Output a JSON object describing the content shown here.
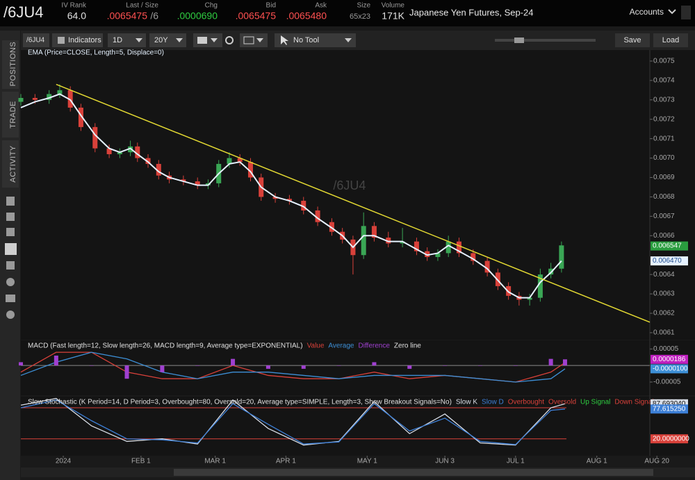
{
  "header": {
    "symbol": "/6JU4",
    "fields": [
      {
        "label": "IV Rank",
        "value": "64.0",
        "color": "#e0e0e0"
      },
      {
        "label": "Last / Size",
        "value": ".0065475",
        "extra": "/6",
        "color": "#ff5050"
      },
      {
        "label": "Chg",
        "value": ".0000690",
        "color": "#2ecc40"
      },
      {
        "label": "Bid",
        "value": ".0065475",
        "color": "#ff5050"
      },
      {
        "label": "Ask",
        "value": ".0065480",
        "color": "#ff5050"
      },
      {
        "label": "Size",
        "value": "65x23",
        "color": "#9a9a9a"
      },
      {
        "label": "Volume",
        "value": "171K",
        "color": "#e0e0e0"
      }
    ],
    "description": "Japanese Yen Futures, Sep-24",
    "accounts": "Accounts"
  },
  "sidebar": {
    "tabs": [
      "POSITIONS",
      "TRADE",
      "ACTIVITY"
    ]
  },
  "toolbar": {
    "symbol": "/6JU4",
    "indicators": "Indicators",
    "interval": "1D",
    "range": "20Y",
    "tool": "No Tool",
    "save": "Save",
    "load": "Load"
  },
  "chart_data": [
    {
      "type": "candlestick",
      "title": "EMA (Price=CLOSE, Length=5, Displace=0)",
      "watermark": "/6JU4",
      "x": [
        0,
        4,
        8,
        11,
        14,
        17,
        21,
        25,
        28,
        31,
        33,
        36,
        39,
        42,
        46,
        50,
        53,
        56,
        59,
        62,
        65,
        68,
        72,
        76,
        80,
        84,
        88,
        91,
        94,
        97,
        100,
        104,
        108,
        112,
        115,
        118,
        121,
        124,
        128,
        132,
        135,
        138,
        141,
        144,
        147,
        150,
        153
      ],
      "open": [
        0.00729,
        0.00731,
        0.0073,
        0.00733,
        0.00735,
        0.00726,
        0.00716,
        0.00705,
        0.00702,
        0.00703,
        0.00706,
        0.007,
        0.00697,
        0.00691,
        0.00689,
        0.00688,
        0.00686,
        0.00687,
        0.00697,
        0.007,
        0.00698,
        0.0069,
        0.0068,
        0.00679,
        0.00678,
        0.00673,
        0.00667,
        0.00662,
        0.00658,
        0.0065,
        0.00665,
        0.00659,
        0.00656,
        0.00657,
        0.00652,
        0.00649,
        0.00651,
        0.00657,
        0.00651,
        0.00647,
        0.00641,
        0.00634,
        0.00629,
        0.00627,
        0.00628,
        0.0064,
        0.00643
      ],
      "high": [
        0.00733,
        0.00733,
        0.00735,
        0.00738,
        0.00737,
        0.00728,
        0.00718,
        0.00707,
        0.00705,
        0.00709,
        0.00708,
        0.00702,
        0.00699,
        0.00693,
        0.00691,
        0.0069,
        0.00689,
        0.00699,
        0.00703,
        0.00702,
        0.007,
        0.00692,
        0.00682,
        0.00681,
        0.0068,
        0.00675,
        0.00669,
        0.00664,
        0.0066,
        0.00672,
        0.00667,
        0.00662,
        0.00664,
        0.00659,
        0.00654,
        0.00653,
        0.0066,
        0.00659,
        0.00653,
        0.00649,
        0.00643,
        0.00636,
        0.00631,
        0.0063,
        0.00643,
        0.00646,
        0.00657
      ],
      "low": [
        0.00727,
        0.00728,
        0.00728,
        0.00731,
        0.00724,
        0.00714,
        0.00703,
        0.007,
        0.007,
        0.00701,
        0.00698,
        0.00695,
        0.00689,
        0.00687,
        0.00686,
        0.00684,
        0.00684,
        0.00685,
        0.00695,
        0.00696,
        0.00688,
        0.00678,
        0.00677,
        0.00676,
        0.00671,
        0.00665,
        0.0066,
        0.00656,
        0.0064,
        0.00648,
        0.00657,
        0.00654,
        0.00654,
        0.0065,
        0.00647,
        0.00647,
        0.00649,
        0.00649,
        0.00645,
        0.00639,
        0.00632,
        0.00627,
        0.00624,
        0.00624,
        0.00626,
        0.00638,
        0.00641
      ],
      "close": [
        0.00731,
        0.0073,
        0.00733,
        0.00735,
        0.00726,
        0.00716,
        0.00705,
        0.00702,
        0.00703,
        0.00706,
        0.007,
        0.00697,
        0.00691,
        0.00689,
        0.00688,
        0.00686,
        0.00687,
        0.00697,
        0.007,
        0.00698,
        0.0069,
        0.0068,
        0.00679,
        0.00678,
        0.00673,
        0.00667,
        0.00662,
        0.00658,
        0.0065,
        0.00665,
        0.00659,
        0.00656,
        0.00657,
        0.00652,
        0.00649,
        0.00651,
        0.00657,
        0.00651,
        0.00647,
        0.00641,
        0.00634,
        0.00629,
        0.00627,
        0.00628,
        0.0064,
        0.00643,
        0.00655
      ],
      "up_color": "#3aa655",
      "down_color": "#d9413a",
      "ema": {
        "values": [
          0.00726,
          0.00729,
          0.00731,
          0.00733,
          0.0073,
          0.00722,
          0.00712,
          0.00705,
          0.00703,
          0.00705,
          0.00702,
          0.00698,
          0.00693,
          0.0069,
          0.00688,
          0.00686,
          0.00686,
          0.00692,
          0.00697,
          0.00698,
          0.00693,
          0.00685,
          0.0068,
          0.00678,
          0.00675,
          0.00669,
          0.00664,
          0.0066,
          0.00654,
          0.0066,
          0.0066,
          0.00657,
          0.00657,
          0.00653,
          0.0065,
          0.00651,
          0.00655,
          0.00652,
          0.00648,
          0.00643,
          0.00637,
          0.00631,
          0.00628,
          0.00628,
          0.00636,
          0.00641,
          0.00647
        ],
        "color": "#e6f2ff"
      },
      "trendline": {
        "x": [
          10,
          178
        ],
        "values": [
          0.00738,
          0.006154
        ],
        "color": "#e3d932"
      },
      "xlim": [
        0,
        178
      ],
      "ylim": [
        0.006064,
        0.007557
      ],
      "yticks": [
        0.0075,
        0.0074,
        0.0073,
        0.0072,
        0.0071,
        {
          "value": 0.007,
          "label": "0.0070"
        },
        0.0069,
        0.0068,
        0.0067,
        0.0066,
        0.0064,
        0.0063,
        0.0062,
        0.0061
      ],
      "last_labels": [
        {
          "value": 0.006547,
          "label": "0.006547",
          "color": "#2a9d3f",
          "text_color": "#ffffff"
        },
        {
          "value": 0.00647,
          "label": "0.006470",
          "color": "#e6f2ff",
          "text_color": "#1c4a8a"
        }
      ]
    },
    {
      "type": "line",
      "title": "MACD (Fast length=12, Slow length=26, MACD length=9, Average type=EXPONENTIAL)",
      "x": [
        0,
        10,
        20,
        30,
        40,
        50,
        60,
        70,
        80,
        90,
        100,
        110,
        120,
        130,
        140,
        150,
        154
      ],
      "series": [
        {
          "name": "Value",
          "color": "#d9413a",
          "values": [
            -2e-05,
            4e-05,
            4e-05,
            -2e-05,
            -4e-05,
            -4e-05,
            0,
            -3e-05,
            -4e-05,
            -4e-05,
            -2e-05,
            -4e-05,
            -3e-05,
            -4e-05,
            -5e-05,
            -2e-05,
            8.6e-06
          ]
        },
        {
          "name": "Average",
          "color": "#3d8fd6",
          "values": [
            -3e-05,
            1e-05,
            4e-05,
            2e-05,
            -2e-05,
            -4e-05,
            -2e-05,
            -2e-05,
            -3e-05,
            -4e-05,
            -3e-05,
            -3e-05,
            -3e-05,
            -4e-05,
            -5e-05,
            -4e-05,
            -1e-05
          ]
        },
        {
          "name": "Difference",
          "color": "#a040d0",
          "style": "histogram",
          "values": [
            1e-05,
            3e-05,
            0,
            -4e-05,
            -2e-05,
            0,
            2e-05,
            -1e-05,
            -1e-05,
            0,
            1e-05,
            -1e-05,
            0,
            0,
            0,
            2e-05,
            1.86e-05
          ]
        }
      ],
      "zero_line": {
        "name": "Zero line",
        "value": 0,
        "color": "#8a8a8a"
      },
      "xlim": [
        0,
        178
      ],
      "ylim": [
        -9e-05,
        7.6e-05
      ],
      "yticks": [
        5e-05,
        -5e-05
      ],
      "last_labels": [
        {
          "value": 1.86e-05,
          "label": "0.0000186",
          "color": "#c020c0",
          "text_color": "#ffffff"
        },
        {
          "value": -1e-05,
          "label": "-0.0000100",
          "color": "#3d8fd6",
          "text_color": "#ffffff"
        }
      ]
    },
    {
      "type": "line",
      "title": "Slow Stochastic (K Period=14, D Period=3, Overbought=80, Oversold=20, Average type=SIMPLE, Length=3, Show Breakout Signals=No)",
      "x": [
        0,
        10,
        20,
        30,
        40,
        50,
        60,
        70,
        80,
        90,
        100,
        110,
        120,
        130,
        140,
        150,
        154
      ],
      "series": [
        {
          "name": "Slow K",
          "color": "#d8dde6",
          "values": [
            85,
            98,
            45,
            15,
            20,
            10,
            95,
            40,
            8,
            15,
            92,
            30,
            68,
            12,
            8,
            80,
            87.69304
          ]
        },
        {
          "name": "Slow D",
          "color": "#3d7fd6",
          "values": [
            80,
            95,
            55,
            20,
            18,
            12,
            88,
            48,
            10,
            14,
            88,
            35,
            60,
            15,
            9,
            75,
            77.61525
          ]
        }
      ],
      "levels": [
        {
          "name": "Overbought",
          "value": 80,
          "color": "#d9413a"
        },
        {
          "name": "Oversold",
          "value": 20,
          "color": "#d9413a",
          "label": "20.0000000"
        }
      ],
      "signals": [
        {
          "name": "Up Signal",
          "color": "#2ecc40"
        },
        {
          "name": "Down Signal",
          "color": "#d9413a"
        }
      ],
      "xlim": [
        0,
        178
      ],
      "ylim": [
        -12.6,
        101.5
      ],
      "xticks": [
        {
          "value": 12,
          "label": "2024"
        },
        {
          "value": 34,
          "label": "FEB 1"
        },
        {
          "value": 55,
          "label": "MAR 1"
        },
        {
          "value": 75,
          "label": "APR 1"
        },
        {
          "value": 98,
          "label": "MAY 1"
        },
        {
          "value": 120,
          "label": "JUN 3"
        },
        {
          "value": 140,
          "label": "JUL 1"
        },
        {
          "value": 163,
          "label": "AUG 1"
        },
        {
          "value": 180,
          "label": "AUG 20"
        }
      ],
      "last_labels": [
        {
          "value": 87.69304,
          "label": "87.693040",
          "color": "#d8dde6",
          "text_color": "#111111"
        },
        {
          "value": 77.61525,
          "label": "77.615250",
          "color": "#3d7fd6",
          "text_color": "#ffffff"
        }
      ]
    }
  ]
}
